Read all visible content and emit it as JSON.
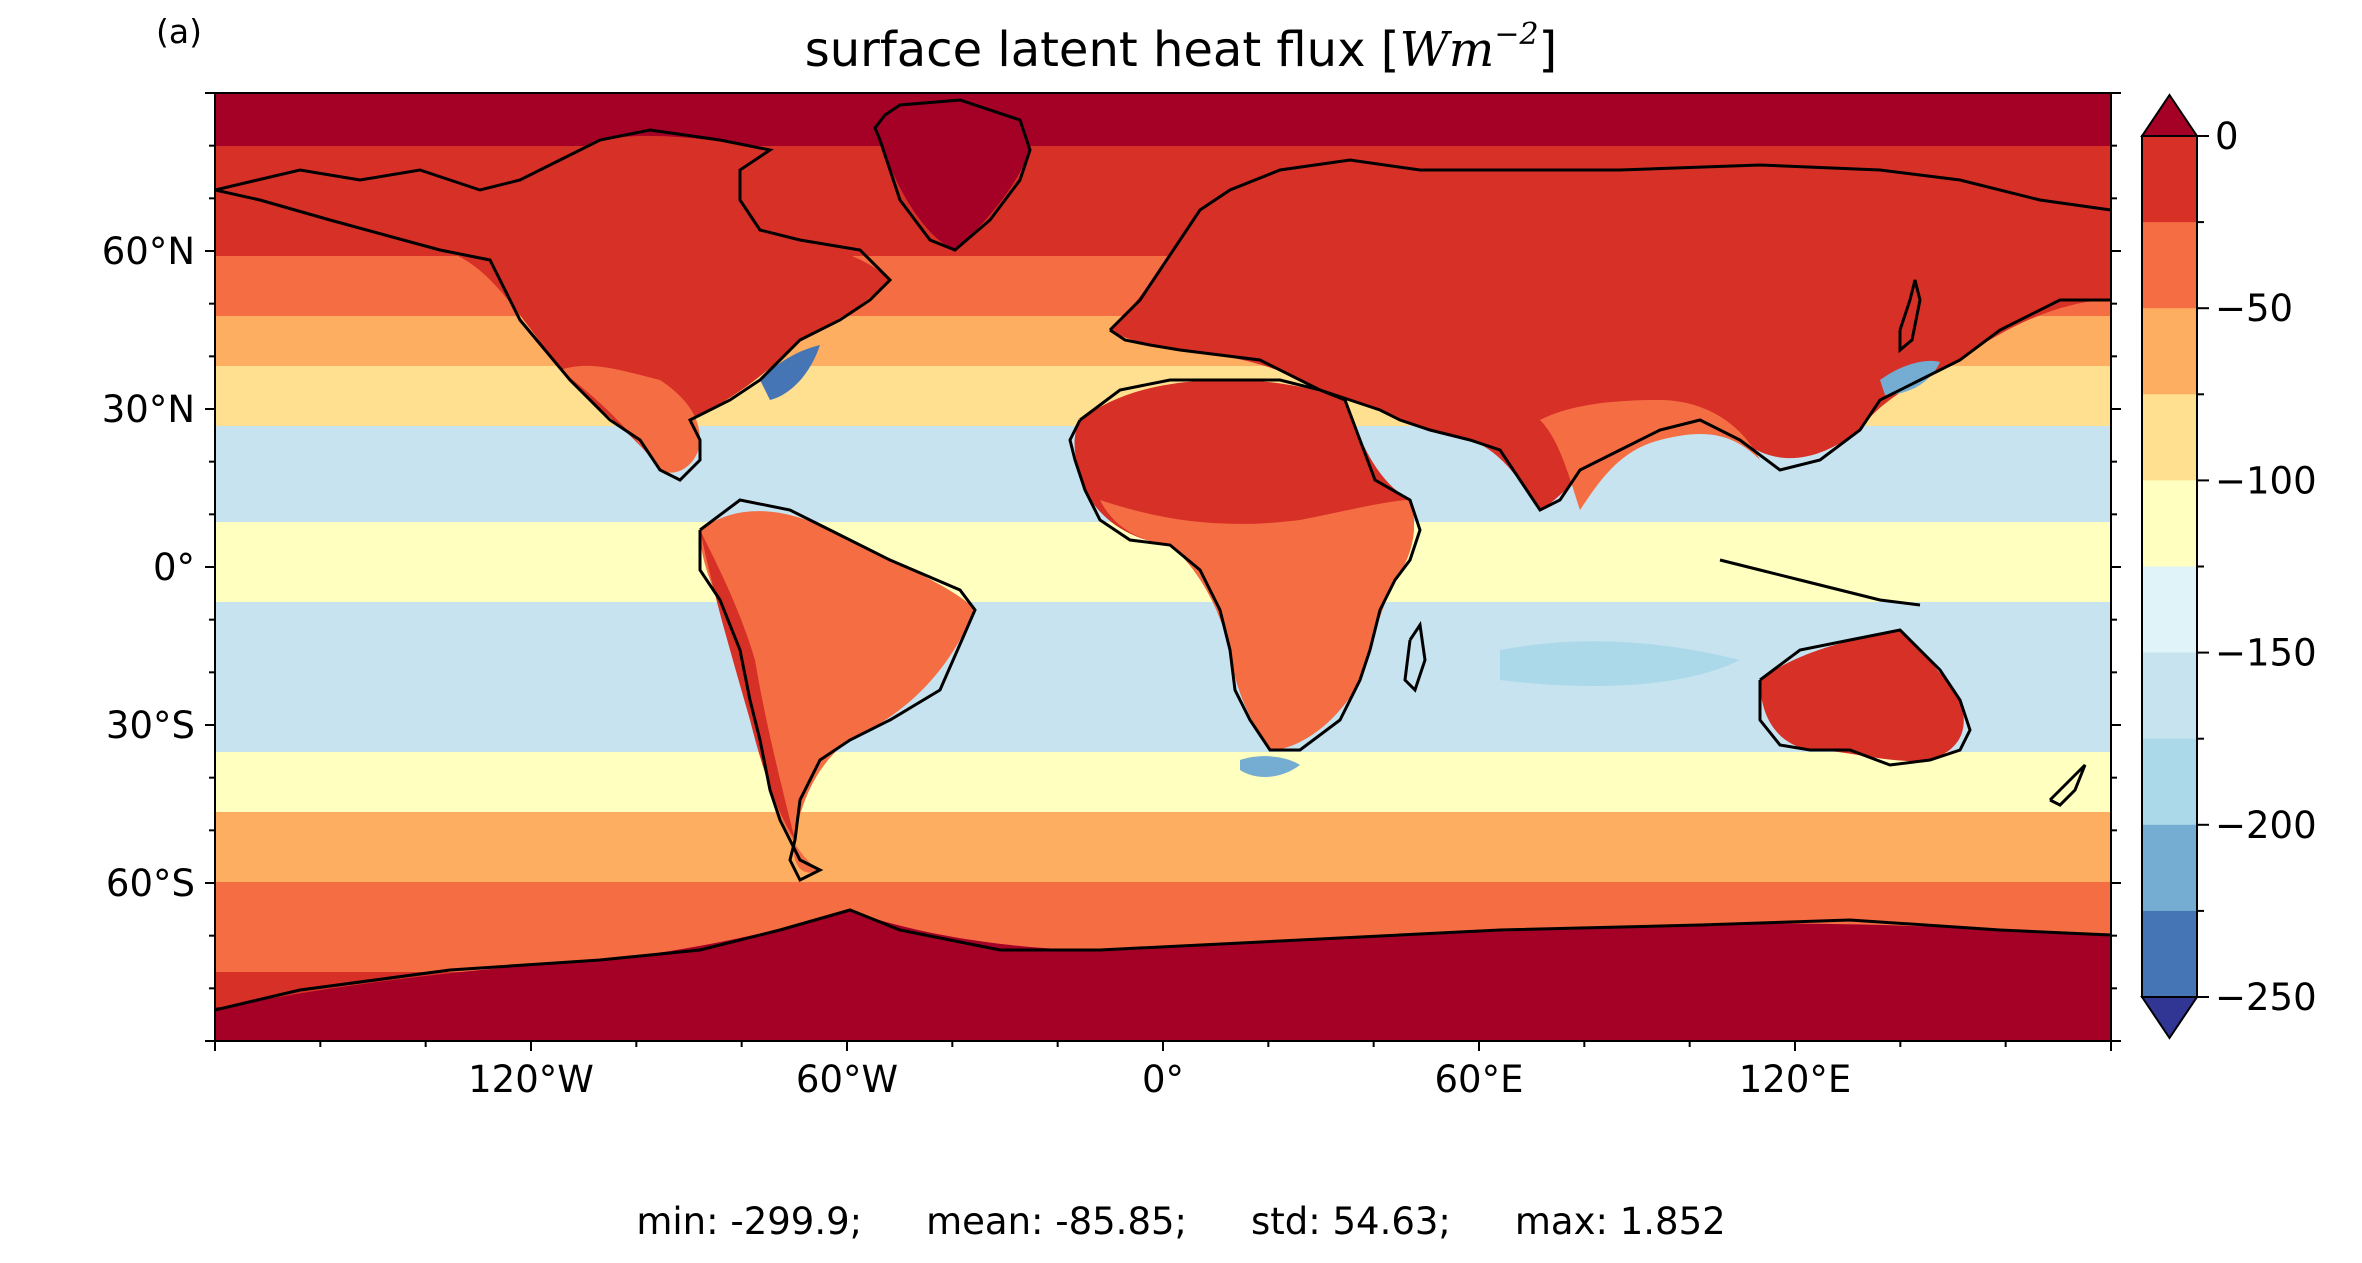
{
  "figure": {
    "panel_label": "(a)",
    "title_text": "surface latent heat flux [",
    "title_unit_main": "Wm",
    "title_unit_exponent": "−2",
    "title_close": "]"
  },
  "map": {
    "projection": "PlateCarree",
    "lon_range": [
      -180,
      180
    ],
    "lat_range": [
      -90,
      90
    ],
    "coastlines": true,
    "lon_ticks": [
      {
        "value": -120,
        "label": "120°W"
      },
      {
        "value": -60,
        "label": "60°W"
      },
      {
        "value": 0,
        "label": "0°"
      },
      {
        "value": 60,
        "label": "60°E"
      },
      {
        "value": 120,
        "label": "120°E"
      }
    ],
    "lat_ticks": [
      {
        "value": 60,
        "label": "60°N"
      },
      {
        "value": 30,
        "label": "30°N"
      },
      {
        "value": 0,
        "label": "0°"
      },
      {
        "value": -30,
        "label": "30°S"
      },
      {
        "value": -60,
        "label": "60°S"
      }
    ]
  },
  "colorbar": {
    "extend": "both",
    "tick_values": [
      0,
      -50,
      -100,
      -150,
      -200,
      -250
    ],
    "tick_labels": [
      "0",
      "−50",
      "−100",
      "−150",
      "−200",
      "−250"
    ],
    "over_color": "#a50026",
    "under_color": "#313695",
    "levels": [
      {
        "from": -25,
        "to": 0,
        "color": "#d73027"
      },
      {
        "from": -50,
        "to": -25,
        "color": "#f46d43"
      },
      {
        "from": -75,
        "to": -50,
        "color": "#fdae61"
      },
      {
        "from": -100,
        "to": -75,
        "color": "#fee090"
      },
      {
        "from": -125,
        "to": -100,
        "color": "#ffffbf"
      },
      {
        "from": -150,
        "to": -125,
        "color": "#e0f3f8"
      },
      {
        "from": -175,
        "to": -150,
        "color": "#c6e3ef"
      },
      {
        "from": -200,
        "to": -175,
        "color": "#abd9e9"
      },
      {
        "from": -225,
        "to": -200,
        "color": "#74add1"
      },
      {
        "from": -250,
        "to": -225,
        "color": "#4575b4"
      }
    ]
  },
  "stats": {
    "min": "min: -299.9;",
    "mean": "mean: -85.85;",
    "std": "std: 54.63;",
    "max": "max: 1.852"
  }
}
